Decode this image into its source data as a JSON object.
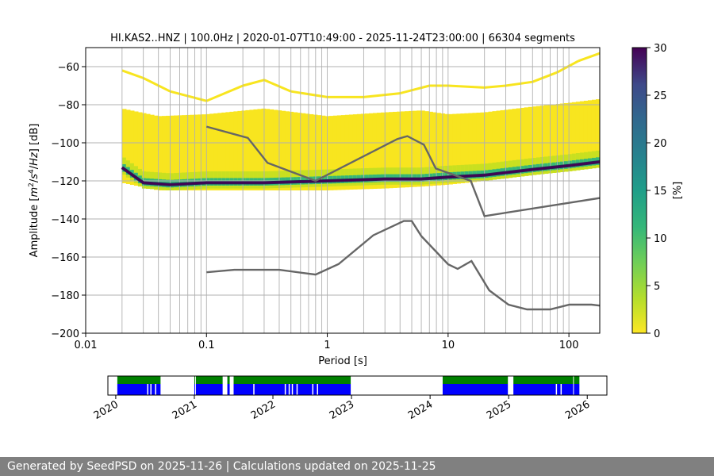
{
  "chart_data": [
    {
      "type": "heatmap",
      "title": "HI.KAS2..HNZ | 100.0Hz | 2020-01-07T10:49:00 - 2025-11-24T23:00:00 | 66304 segments",
      "xlabel": "Period [s]",
      "ylabel_parts": [
        "Amplitude [",
        "m",
        "2",
        "/",
        "s",
        "4",
        "/",
        "Hz",
        "] [dB]"
      ],
      "x_scale": "log",
      "xlim": [
        0.01,
        180
      ],
      "ylim": [
        -200,
        -50
      ],
      "x_tick_values": [
        0.01,
        0.1,
        1,
        10,
        100
      ],
      "x_tick_labels": [
        "0.01",
        "0.1",
        "1",
        "10",
        "100"
      ],
      "y_ticks": [
        -200,
        -180,
        -160,
        -140,
        -120,
        -100,
        -80,
        -60
      ],
      "y_tick_labels": [
        "−200",
        "−180",
        "−160",
        "−140",
        "−120",
        "−100",
        "−80",
        "−60"
      ],
      "grid": true,
      "colorbar": {
        "label": "[%]",
        "range": [
          0,
          30
        ],
        "ticks": [
          0,
          5,
          10,
          15,
          20,
          25,
          30
        ],
        "colormap": "viridis_r"
      },
      "psd_mode": {
        "name": "mode",
        "x": [
          0.02,
          0.03,
          0.05,
          0.1,
          0.3,
          1,
          3,
          6,
          10,
          20,
          50,
          100,
          180
        ],
        "y": [
          -113,
          -121,
          -122,
          -121,
          -121,
          -120,
          -119,
          -119,
          -118,
          -117,
          -114,
          -112,
          -110
        ]
      },
      "density_envelope": {
        "x": [
          0.02,
          0.04,
          0.1,
          0.3,
          1,
          3,
          6,
          10,
          20,
          50,
          100,
          180
        ],
        "upper": [
          -82,
          -86,
          -85,
          -82,
          -86,
          -84,
          -83,
          -85,
          -84,
          -81,
          -79,
          -77
        ],
        "lower": [
          -121,
          -125,
          -125,
          -125,
          -125,
          -124,
          -123,
          -122,
          -120,
          -117,
          -115,
          -113
        ]
      },
      "sparse_high_trace": {
        "x": [
          0.02,
          0.03,
          0.05,
          0.1,
          0.2,
          0.3,
          0.5,
          1,
          2,
          4,
          7,
          10,
          20,
          30,
          50,
          80,
          120,
          180
        ],
        "y": [
          -62,
          -66,
          -73,
          -78,
          -70,
          -67,
          -73,
          -76,
          -76,
          -74,
          -70,
          -70,
          -71,
          -70,
          -68,
          -63,
          -57,
          -53
        ]
      },
      "nlnm_nhnm": [
        {
          "name": "NHNM",
          "x": [
            0.1,
            0.22,
            0.32,
            0.8,
            3.8,
            4.6,
            6.3,
            7.9,
            15.4,
            20,
            180
          ],
          "y": [
            -91.5,
            -97.4,
            -110.5,
            -120,
            -98,
            -96.5,
            -101,
            -113.5,
            -120,
            -138.5,
            -129
          ]
        },
        {
          "name": "NLNM",
          "x": [
            0.1,
            0.17,
            0.4,
            0.8,
            1.24,
            2.4,
            4.3,
            5,
            6,
            10,
            12,
            15.6,
            21.9,
            31.6,
            45,
            70,
            101,
            154,
            180
          ],
          "y": [
            -168,
            -166.7,
            -166.7,
            -169.2,
            -163.7,
            -148.6,
            -141.1,
            -141.1,
            -149,
            -163.8,
            -166.2,
            -162.1,
            -177.5,
            -185,
            -187.5,
            -187.5,
            -185,
            -185,
            -185.5
          ]
        }
      ]
    },
    {
      "type": "timeline",
      "x_tick_labels": [
        "2020",
        "2021",
        "2022",
        "2023",
        "2024",
        "2025",
        "2026"
      ],
      "x_tick_years": [
        2020,
        2021,
        2022,
        2023,
        2024,
        2025,
        2026
      ],
      "xlim": [
        2019.9,
        2026.25
      ],
      "colors": {
        "available": "#008000",
        "processed": "#0000ff"
      },
      "available_segments": [
        [
          2020.02,
          2020.57
        ],
        [
          2021.0,
          2021.01
        ],
        [
          2021.02,
          2021.36
        ],
        [
          2021.42,
          2021.45
        ],
        [
          2021.5,
          2022.99
        ],
        [
          2024.16,
          2024.99
        ],
        [
          2025.06,
          2025.82
        ],
        [
          2025.83,
          2025.9
        ]
      ],
      "gaps": [
        2020.4,
        2020.44,
        2020.5,
        2021.75,
        2022.15,
        2022.2,
        2022.24,
        2022.3,
        2022.5,
        2022.56,
        2025.6,
        2025.66
      ]
    }
  ],
  "footer": {
    "text": "Generated by SeedPSD on 2025-11-26 | Calculations updated on 2025-11-25"
  }
}
